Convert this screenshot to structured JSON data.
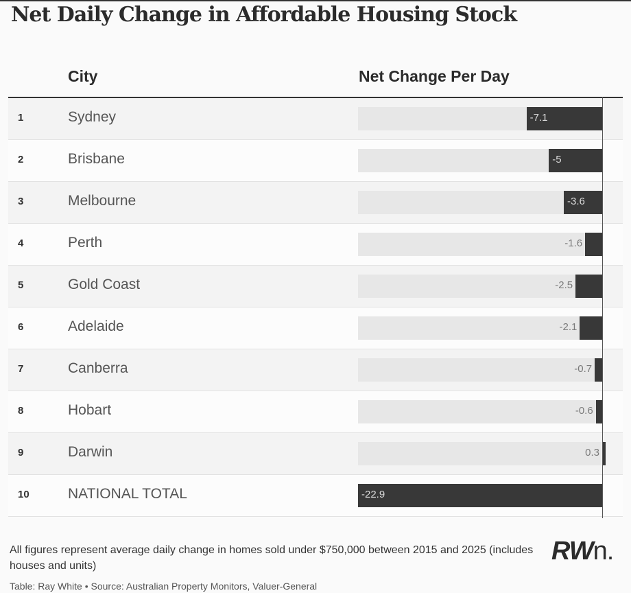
{
  "chart_data": {
    "type": "bar",
    "title": "Net Daily Change in Affordable Housing Stock",
    "headers": {
      "city": "City",
      "value": "Net Change Per Day"
    },
    "rows": [
      {
        "rank": "1",
        "city": "Sydney",
        "value": -7.1,
        "label": "-7.1"
      },
      {
        "rank": "2",
        "city": "Brisbane",
        "value": -5,
        "label": "-5"
      },
      {
        "rank": "3",
        "city": "Melbourne",
        "value": -3.6,
        "label": "-3.6"
      },
      {
        "rank": "4",
        "city": "Perth",
        "value": -1.6,
        "label": "-1.6"
      },
      {
        "rank": "5",
        "city": "Gold Coast",
        "value": -2.5,
        "label": "-2.5"
      },
      {
        "rank": "6",
        "city": "Adelaide",
        "value": -2.1,
        "label": "-2.1"
      },
      {
        "rank": "7",
        "city": "Canberra",
        "value": -0.7,
        "label": "-0.7"
      },
      {
        "rank": "8",
        "city": "Hobart",
        "value": -0.6,
        "label": "-0.6"
      },
      {
        "rank": "9",
        "city": "Darwin",
        "value": 0.3,
        "label": "0.3"
      },
      {
        "rank": "10",
        "city": "NATIONAL TOTAL",
        "value": -22.9,
        "label": "-22.9"
      }
    ],
    "xlim": [
      -22.9,
      0.3
    ],
    "bar_color": "#383838",
    "track_color": "#e7e7e7"
  },
  "footnote": "All figures represent average daily change in homes sold under $750,000 between 2015 and 2025 (includes houses and units)",
  "credits": "Table: Ray White • Source: Australian Property Monitors, Valuer-General",
  "logo": {
    "bold": "RW",
    "rest": "n."
  }
}
